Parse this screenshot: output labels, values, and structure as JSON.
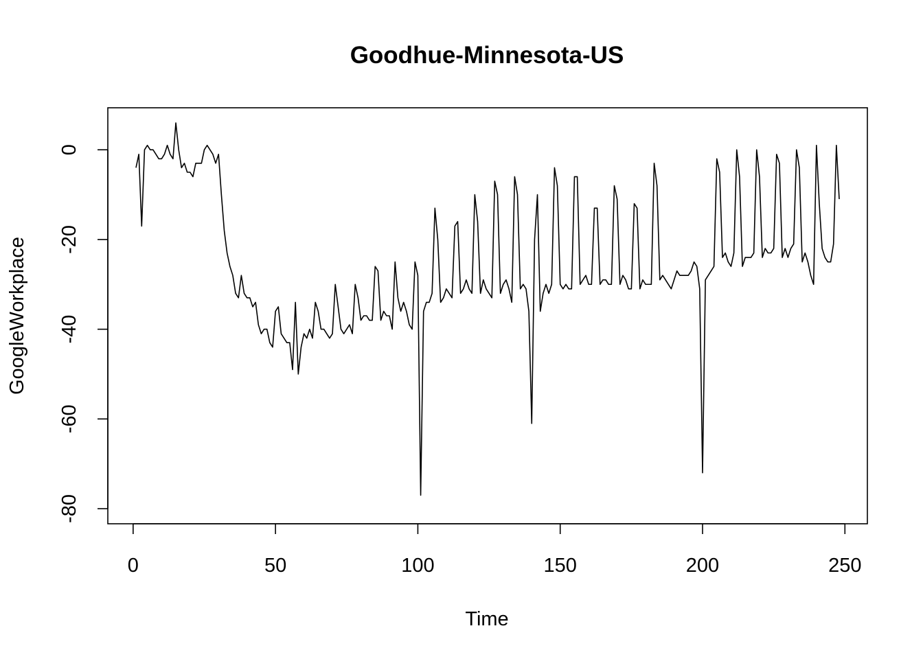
{
  "chart_data": {
    "type": "line",
    "title": "Goodhue-Minnesota-US",
    "xlabel": "Time",
    "ylabel": "GoogleWorkplace",
    "xlim": [
      1,
      248
    ],
    "ylim": [
      -80,
      6
    ],
    "x_ticks": [
      0,
      50,
      100,
      150,
      200,
      250
    ],
    "x_tick_labels": [
      "0",
      "50",
      "100",
      "150",
      "200",
      "250"
    ],
    "y_ticks": [
      -80,
      -60,
      -40,
      -20,
      0
    ],
    "y_tick_labels": [
      "-80",
      "-60",
      "-40",
      "-20",
      "0"
    ],
    "grid": false,
    "line_color": "#000000",
    "series": [
      {
        "x_start": 1,
        "values": [
          -4,
          -1,
          -17,
          0,
          1,
          0,
          0,
          -1,
          -2,
          -2,
          -1,
          1,
          -1,
          -2,
          6,
          0,
          -4,
          -3,
          -5,
          -5,
          -6,
          -3,
          -3,
          -3,
          0,
          1,
          0,
          -1,
          -3,
          -1,
          -10,
          -18,
          -23,
          -26,
          -28,
          -32,
          -33,
          -28,
          -32,
          -33,
          -33,
          -35,
          -34,
          -39,
          -41,
          -40,
          -40,
          -43,
          -44,
          -36,
          -35,
          -41,
          -42,
          -43,
          -43,
          -49,
          -34,
          -50,
          -44,
          -41,
          -42,
          -40,
          -42,
          -34,
          -36,
          -40,
          -40,
          -41,
          -42,
          -41,
          -30,
          -35,
          -40,
          -41,
          -40,
          -39,
          -41,
          -30,
          -33,
          -38,
          -37,
          -37,
          -38,
          -38,
          -26,
          -27,
          -38,
          -36,
          -37,
          -37,
          -40,
          -25,
          -33,
          -36,
          -34,
          -36,
          -39,
          -40,
          -25,
          -28,
          -77,
          -36,
          -34,
          -34,
          -32,
          -13,
          -20,
          -34,
          -33,
          -31,
          -32,
          -33,
          -17,
          -16,
          -32,
          -31,
          -29,
          -31,
          -32,
          -10,
          -16,
          -32,
          -29,
          -31,
          -32,
          -33,
          -7,
          -10,
          -32,
          -30,
          -29,
          -31,
          -34,
          -6,
          -10,
          -31,
          -30,
          -31,
          -36,
          -61,
          -20,
          -10,
          -36,
          -32,
          -30,
          -32,
          -30,
          -4,
          -8,
          -30,
          -31,
          -30,
          -31,
          -31,
          -6,
          -6,
          -30,
          -29,
          -28,
          -30,
          -30,
          -13,
          -13,
          -30,
          -29,
          -29,
          -30,
          -30,
          -8,
          -11,
          -30,
          -28,
          -29,
          -31,
          -31,
          -12,
          -13,
          -31,
          -29,
          -30,
          -30,
          -30,
          -3,
          -8,
          -29,
          -28,
          -29,
          -30,
          -31,
          -29,
          -27,
          -28,
          -28,
          -28,
          -28,
          -27,
          -25,
          -26,
          -31,
          -72,
          -29,
          -28,
          -27,
          -26,
          -2,
          -5,
          -24,
          -23,
          -25,
          -26,
          -23,
          0,
          -6,
          -26,
          -24,
          -24,
          -24,
          -23,
          0,
          -6,
          -24,
          -22,
          -23,
          -23,
          -22,
          -1,
          -3,
          -24,
          -22,
          -24,
          -22,
          -21,
          0,
          -4,
          -25,
          -23,
          -25,
          -28,
          -30,
          1,
          -12,
          -22,
          -24,
          -25,
          -25,
          -21,
          1,
          -11
        ]
      }
    ]
  }
}
